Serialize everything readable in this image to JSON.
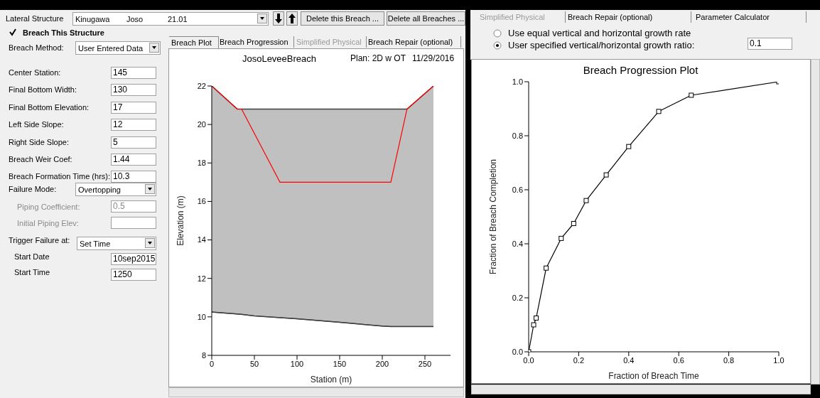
{
  "chart_data": [
    {
      "type": "other",
      "annotations": [
        "Lateral Structure",
        "Kinugawa",
        "Joso",
        "21.01",
        "Delete this Breach ...",
        "Delete all Breaches ...",
        "Breach This Structure",
        "Breach Method:",
        "User Entered Data",
        "Center Station:",
        "145",
        "Final Bottom Width:",
        "130",
        "Final Bottom Elevation:",
        "17",
        "Left Side Slope:",
        "12",
        "Right Side Slope:",
        "5",
        "Breach Weir Coef:",
        "1.44",
        "Breach Formation Time (hrs):",
        "10.3",
        "Failure Mode:",
        "Overtopping",
        "Piping Coefficient:",
        "0.5",
        "Initial Piping Elev:",
        "Trigger Failure at:",
        "Set Time",
        "Start Date",
        "10sep2015",
        "Start Time",
        "1250",
        "Breach Plot",
        "Breach Progression",
        "Simplified Physical",
        "Breach Repair (optional)"
      ]
    },
    {
      "type": "area",
      "title": "JosoLeveeBreach",
      "subtitle": "Plan: 2D w OT",
      "annotations": [
        "11/29/2016"
      ],
      "xlabel": "Station (m)",
      "ylabel": "Elevation (m)",
      "xlim": [
        0,
        280
      ],
      "xticks": [
        0,
        50,
        100,
        150,
        200,
        250
      ],
      "ylim": [
        8,
        22
      ],
      "yticks": [
        8,
        10,
        12,
        14,
        16,
        18,
        20,
        22
      ],
      "series": [
        {
          "type": "area",
          "color": "#c0c0c0",
          "x": [
            0,
            30,
            35,
            50,
            100,
            150,
            200,
            210,
            229,
            260
          ],
          "values": [
            22,
            20.8,
            20.8,
            20.8,
            20.8,
            20.8,
            20.8,
            20.8,
            20.8,
            22
          ]
        },
        {
          "type": "line",
          "color": "#404040",
          "x": [
            0,
            30,
            35,
            50,
            100,
            150,
            200,
            210,
            229,
            260
          ],
          "values": [
            10.25,
            10.15,
            10.13,
            10.05,
            9.9,
            9.72,
            9.52,
            9.5,
            9.5,
            9.5
          ]
        },
        {
          "type": "line",
          "color": "#ff0000",
          "x": [
            0,
            30,
            35,
            80,
            210,
            229,
            260
          ],
          "values": [
            22,
            20.8,
            20.8,
            17,
            17,
            20.8,
            22
          ]
        }
      ]
    },
    {
      "type": "other",
      "annotations": [
        "Simplified Physical",
        "Breach Repair (optional)",
        "Parameter Calculator",
        "Use equal vertical and horizontal growth rate",
        "User specified vertical/horizontal growth ratio:",
        "0.1"
      ]
    },
    {
      "type": "line",
      "title": "Breach Progression Plot",
      "xlabel": "Fraction of Breach Time",
      "ylabel": "Fraction of Breach Completion",
      "color": "#000000",
      "marker": "square",
      "x": [
        0,
        0.02,
        0.03,
        0.07,
        0.13,
        0.18,
        0.23,
        0.31,
        0.4,
        0.52,
        0.65,
        1.0
      ],
      "values": [
        0,
        0.1,
        0.125,
        0.31,
        0.42,
        0.475,
        0.56,
        0.655,
        0.76,
        0.89,
        0.95,
        1.0
      ],
      "xlim": [
        0,
        1
      ],
      "xticks": [
        {
          "value": 0,
          "label": "0.0"
        },
        {
          "value": 0.2,
          "label": "0.2"
        },
        {
          "value": 0.4,
          "label": "0.4"
        },
        {
          "value": 0.6,
          "label": "0.6"
        },
        {
          "value": 0.8,
          "label": "0.8"
        },
        {
          "value": 1,
          "label": "1.0"
        }
      ],
      "ylim": [
        0,
        1
      ],
      "yticks": [
        {
          "value": 0,
          "label": "0.0"
        },
        {
          "value": 0.2,
          "label": "0.2"
        },
        {
          "value": 0.4,
          "label": "0.4"
        },
        {
          "value": 0.6,
          "label": "0.6"
        },
        {
          "value": 0.8,
          "label": "0.8"
        },
        {
          "value": 1,
          "label": "1.0"
        }
      ]
    }
  ]
}
